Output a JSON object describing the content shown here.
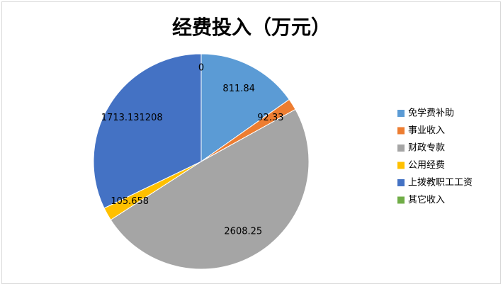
{
  "chart_data": {
    "type": "pie",
    "title": "经费投入（万元）",
    "categories": [
      "免学费补助",
      "事业收入",
      "财政专款",
      "公用经费",
      "上拨教职工工资",
      "其它收入"
    ],
    "values": [
      811.84,
      92.33,
      2608.25,
      105.658,
      1713.131208,
      0
    ],
    "colors": [
      "#5b9bd5",
      "#ed7d31",
      "#a5a5a5",
      "#ffc000",
      "#4472c4",
      "#70ad47"
    ],
    "legend": "right"
  }
}
